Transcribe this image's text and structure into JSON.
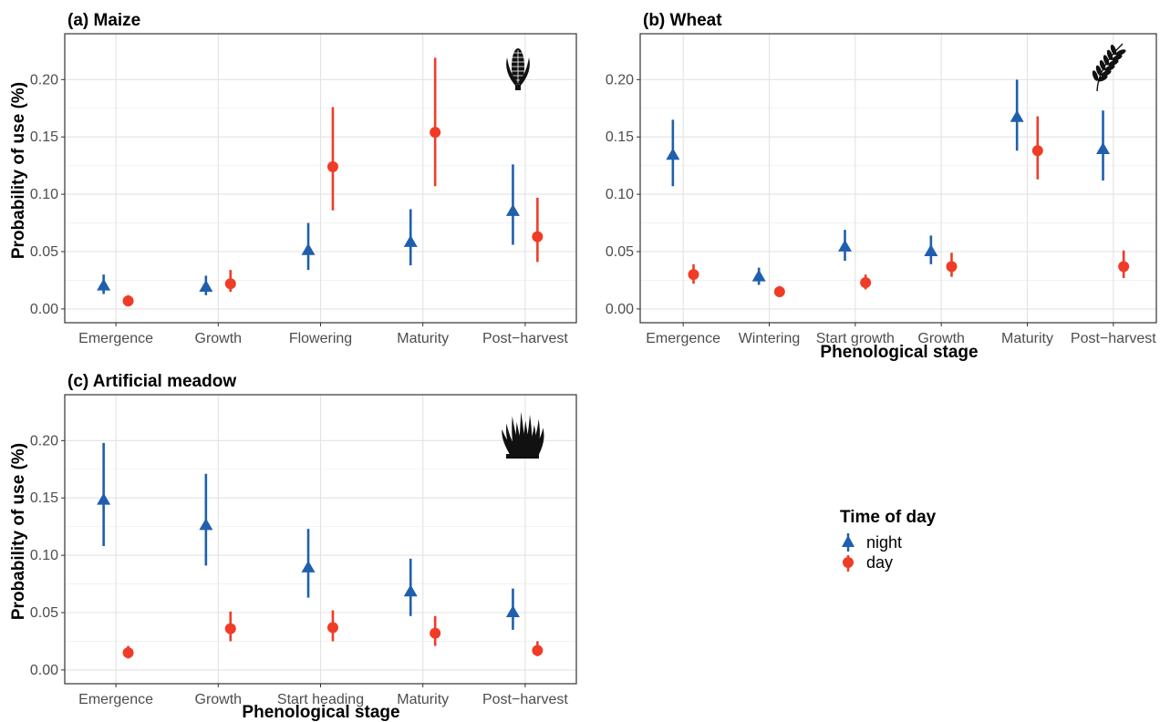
{
  "chart_data": [
    {
      "type": "scatter",
      "title": "(a) Maize",
      "xlabel": "",
      "ylabel": "Probability of use (%)",
      "ylim": [
        -0.012,
        0.24
      ],
      "yticks": [
        "0.00",
        "0.05",
        "0.10",
        "0.15",
        "0.20"
      ],
      "grid": true,
      "icon": "corn-icon",
      "categories": [
        "Emergence",
        "Growth",
        "Flowering",
        "Maturity",
        "Post−harvest"
      ],
      "series": [
        {
          "name": "night",
          "color": "#1f5fad",
          "marker": "triangle",
          "values": [
            0.02,
            0.019,
            0.051,
            0.058,
            0.085
          ],
          "lower": [
            0.013,
            0.012,
            0.034,
            0.038,
            0.056
          ],
          "upper": [
            0.03,
            0.029,
            0.075,
            0.087,
            0.126
          ]
        },
        {
          "name": "day",
          "color": "#f03c26",
          "marker": "circle",
          "values": [
            0.007,
            0.022,
            0.124,
            0.154,
            0.063
          ],
          "lower": [
            0.004,
            0.015,
            0.086,
            0.107,
            0.041
          ],
          "upper": [
            0.012,
            0.034,
            0.176,
            0.219,
            0.097
          ]
        }
      ]
    },
    {
      "type": "scatter",
      "title": "(b) Wheat",
      "xlabel": "Phenological stage",
      "ylabel": "",
      "ylim": [
        -0.012,
        0.24
      ],
      "yticks": [
        "0.00",
        "0.05",
        "0.10",
        "0.15",
        "0.20"
      ],
      "grid": true,
      "icon": "wheat-icon",
      "categories": [
        "Emergence",
        "Wintering",
        "Start growth",
        "Growth",
        "Maturity",
        "Post−harvest"
      ],
      "series": [
        {
          "name": "night",
          "color": "#1f5fad",
          "marker": "triangle",
          "values": [
            0.134,
            0.028,
            0.054,
            0.05,
            0.167,
            0.139
          ],
          "lower": [
            0.107,
            0.021,
            0.042,
            0.039,
            0.138,
            0.112
          ],
          "upper": [
            0.165,
            0.036,
            0.069,
            0.064,
            0.2,
            0.173
          ]
        },
        {
          "name": "day",
          "color": "#f03c26",
          "marker": "circle",
          "values": [
            0.03,
            0.015,
            0.023,
            0.037,
            0.138,
            0.037
          ],
          "lower": [
            0.022,
            0.011,
            0.017,
            0.028,
            0.113,
            0.027
          ],
          "upper": [
            0.039,
            0.02,
            0.03,
            0.049,
            0.168,
            0.051
          ]
        }
      ]
    },
    {
      "type": "scatter",
      "title": "(c) Artificial meadow",
      "xlabel": "Phenological stage",
      "ylabel": "Probability of use (%)",
      "ylim": [
        -0.012,
        0.24
      ],
      "yticks": [
        "0.00",
        "0.05",
        "0.10",
        "0.15",
        "0.20"
      ],
      "grid": true,
      "icon": "grass-icon",
      "categories": [
        "Emergence",
        "Growth",
        "Start heading",
        "Maturity",
        "Post−harvest"
      ],
      "series": [
        {
          "name": "night",
          "color": "#1f5fad",
          "marker": "triangle",
          "values": [
            0.148,
            0.126,
            0.089,
            0.068,
            0.05
          ],
          "lower": [
            0.108,
            0.091,
            0.063,
            0.047,
            0.035
          ],
          "upper": [
            0.198,
            0.171,
            0.123,
            0.097,
            0.071
          ]
        },
        {
          "name": "day",
          "color": "#f03c26",
          "marker": "circle",
          "values": [
            0.015,
            0.036,
            0.037,
            0.032,
            0.017
          ],
          "lower": [
            0.01,
            0.025,
            0.025,
            0.021,
            0.012
          ],
          "upper": [
            0.021,
            0.051,
            0.052,
            0.047,
            0.025
          ]
        }
      ]
    }
  ],
  "legend": {
    "title": "Time of day",
    "items": [
      {
        "label": "night",
        "color": "#1f5fad",
        "marker": "triangle"
      },
      {
        "label": "day",
        "color": "#f03c26",
        "marker": "circle"
      }
    ]
  }
}
